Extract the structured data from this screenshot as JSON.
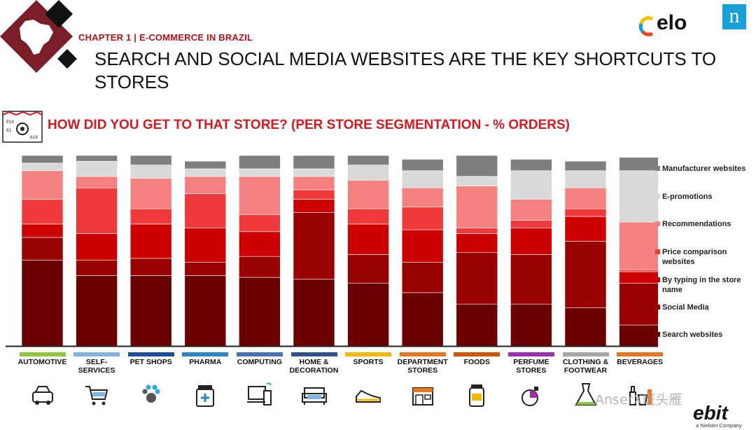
{
  "header": {
    "chapter": "CHAPTER 1 | E-COMMERCE IN BRAZIL",
    "title": "SEARCH AND SOCIAL MEDIA WEBSITES ARE THE KEY SHORTCUTS TO STORES",
    "question": "HOW DID YOU GET TO THAT STORE? (PER STORE SEGMENTATION - % ORDERS)",
    "elo_logo": "elo",
    "nielsen_logo": "n"
  },
  "footer": {
    "watermark": "AnserX斑头雁",
    "ebit_logo": "ebit",
    "ebit_sub": "a Nielsen Company"
  },
  "colors": {
    "accent": "#d71920",
    "Manufacturer websites": "#7f7f7f",
    "E-promotions": "#d9d9d9",
    "Recommendations": "#f4817f",
    "Price comparison websites": "#f0393b",
    "By typing in the store name": "#cc0000",
    "Social Media": "#990000",
    "Search websites": "#6b0000"
  },
  "chart_data": {
    "type": "bar",
    "stacked": true,
    "ylim": [
      0,
      100
    ],
    "legend_position": "right",
    "categories": [
      "AUTOMOTIVE",
      "SELF-SERVICES",
      "PET SHOPS",
      "PHARMA",
      "COMPUTING",
      "HOME & DECORATION",
      "SPORTS",
      "DEPARTMENT STORES",
      "FOODS",
      "PERFUME STORES",
      "CLOTHING & FOOTWEAR",
      "BEVERAGES"
    ],
    "category_colors": [
      "#8dc63f",
      "#7fb4e0",
      "#1f4e9c",
      "#2e86c1",
      "#4b6fb5",
      "#2f4f8f",
      "#f5b800",
      "#e87722",
      "#d35400",
      "#9b2fae",
      "#a6a6a6",
      "#e87722"
    ],
    "category_icons": [
      "car-icon",
      "cart-icon",
      "paw-icon",
      "medicine-jar-icon",
      "devices-icon",
      "sofa-icon",
      "sneaker-icon",
      "storefront-icon",
      "food-jar-icon",
      "perfume-icon",
      "dress-icon",
      "bottles-icon"
    ],
    "series": [
      {
        "name": "Search websites",
        "values": [
          45,
          37,
          37,
          37,
          36,
          35,
          33,
          28,
          22,
          22,
          20,
          11
        ]
      },
      {
        "name": "Social Media",
        "values": [
          12,
          8,
          9,
          7,
          11,
          35,
          15,
          16,
          27,
          26,
          35,
          22
        ]
      },
      {
        "name": "By typing in the store name",
        "values": [
          7,
          14,
          18,
          18,
          13,
          7,
          16,
          17,
          10,
          14,
          13,
          6
        ]
      },
      {
        "name": "Price comparison websites",
        "values": [
          13,
          24,
          8,
          18,
          9,
          5,
          8,
          12,
          3,
          4,
          4,
          1
        ]
      },
      {
        "name": "Recommendations",
        "values": [
          15,
          6,
          16,
          9,
          20,
          7,
          15,
          10,
          22,
          11,
          11,
          25
        ]
      },
      {
        "name": "E-promotions",
        "values": [
          4,
          8,
          7,
          4,
          4,
          4,
          8,
          9,
          5,
          15,
          9,
          27
        ]
      },
      {
        "name": "Manufacturer websites",
        "values": [
          4,
          3,
          5,
          4,
          7,
          7,
          5,
          6,
          11,
          6,
          5,
          7
        ]
      }
    ]
  }
}
